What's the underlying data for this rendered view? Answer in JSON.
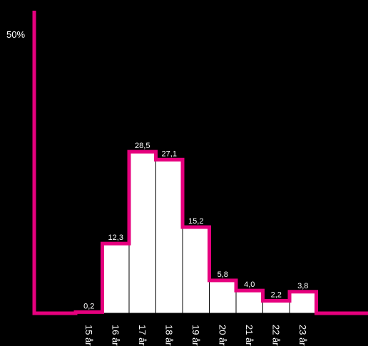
{
  "chart_data": {
    "type": "bar",
    "title": "",
    "xlabel": "",
    "ylabel": "",
    "ylim": [
      0,
      50
    ],
    "y_tick_labels": [
      "50%"
    ],
    "categories": [
      "15 år",
      "16 år",
      "17 år",
      "18 år",
      "19 år",
      "20 år",
      "21 år",
      "22 år",
      "23 år"
    ],
    "values": [
      0.2,
      12.3,
      28.5,
      27.1,
      15.2,
      5.8,
      4.0,
      2.2,
      3.8
    ],
    "value_labels": [
      "0,2",
      "12,3",
      "28,5",
      "27,1",
      "15,2",
      "5,8",
      "4,0",
      "2,2",
      "3,8"
    ],
    "colors": {
      "background": "#000000",
      "bars": "#ffffff",
      "outline": "#e6007e",
      "text": "#ffffff"
    },
    "grid": false
  }
}
